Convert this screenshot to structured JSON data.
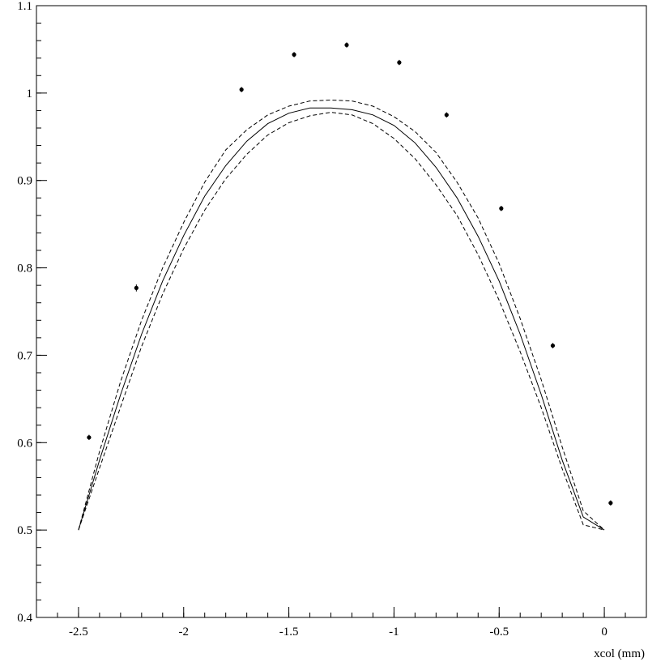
{
  "chart_data": {
    "type": "line",
    "title": "",
    "xlabel": "xcol (mm)",
    "ylabel": "",
    "xlim": [
      -2.7,
      0.2
    ],
    "ylim": [
      0.4,
      1.1
    ],
    "grid": false,
    "legend": "none",
    "x_ticks": [
      -2.5,
      -2,
      -1.5,
      -1,
      -0.5,
      0
    ],
    "x_tick_labels": [
      "-2.5",
      "-2",
      "-1.5",
      "-1",
      "-0.5",
      "0"
    ],
    "y_ticks": [
      0.4,
      0.5,
      0.6,
      0.7,
      0.8,
      0.9,
      1,
      1.1
    ],
    "y_tick_labels": [
      "0.4",
      "0.5",
      "0.6",
      "0.7",
      "0.8",
      "0.9",
      "1",
      "1.1"
    ],
    "series": [
      {
        "style": "points",
        "x": [
          -2.45,
          -2.225,
          -1.725,
          -1.475,
          -1.225,
          -0.975,
          -0.75,
          -0.49,
          -0.245,
          0.03
        ],
        "y": [
          0.606,
          0.777,
          1.004,
          1.044,
          1.055,
          1.035,
          0.975,
          0.868,
          0.711,
          0.531
        ],
        "err": [
          0.003,
          0.004,
          0.003,
          0.003,
          0.003,
          0.003,
          0.003,
          0.003,
          0.003,
          0.003
        ]
      },
      {
        "style": "solid",
        "x": [
          -2.5,
          -2.4,
          -2.3,
          -2.2,
          -2.1,
          -2.0,
          -1.9,
          -1.8,
          -1.7,
          -1.6,
          -1.5,
          -1.4,
          -1.3,
          -1.2,
          -1.1,
          -1.0,
          -0.9,
          -0.8,
          -0.7,
          -0.6,
          -0.5,
          -0.4,
          -0.3,
          -0.2,
          -0.1,
          0.0
        ],
        "y": [
          0.5,
          0.58,
          0.655,
          0.724,
          0.785,
          0.837,
          0.882,
          0.917,
          0.945,
          0.965,
          0.977,
          0.983,
          0.983,
          0.981,
          0.975,
          0.963,
          0.943,
          0.915,
          0.88,
          0.836,
          0.785,
          0.724,
          0.655,
          0.58,
          0.515,
          0.5
        ]
      },
      {
        "style": "dashed",
        "x": [
          -2.5,
          -2.4,
          -2.3,
          -2.2,
          -2.1,
          -2.0,
          -1.9,
          -1.8,
          -1.7,
          -1.6,
          -1.5,
          -1.4,
          -1.3,
          -1.2,
          -1.1,
          -1.0,
          -0.9,
          -0.8,
          -0.7,
          -0.6,
          -0.5,
          -0.4,
          -0.3,
          -0.2,
          -0.1,
          0.0
        ],
        "y": [
          0.5,
          0.59,
          0.67,
          0.74,
          0.8,
          0.852,
          0.898,
          0.935,
          0.958,
          0.975,
          0.985,
          0.991,
          0.992,
          0.991,
          0.985,
          0.973,
          0.956,
          0.932,
          0.898,
          0.857,
          0.805,
          0.742,
          0.672,
          0.595,
          0.522,
          0.5
        ]
      },
      {
        "style": "dashed",
        "x": [
          -2.5,
          -2.4,
          -2.3,
          -2.2,
          -2.1,
          -2.0,
          -1.9,
          -1.8,
          -1.7,
          -1.6,
          -1.5,
          -1.4,
          -1.3,
          -1.2,
          -1.1,
          -1.0,
          -0.9,
          -0.8,
          -0.7,
          -0.6,
          -0.5,
          -0.4,
          -0.3,
          -0.2,
          -0.1,
          0.0
        ],
        "y": [
          0.5,
          0.571,
          0.641,
          0.71,
          0.77,
          0.822,
          0.866,
          0.902,
          0.93,
          0.952,
          0.966,
          0.974,
          0.978,
          0.975,
          0.965,
          0.948,
          0.925,
          0.895,
          0.86,
          0.815,
          0.763,
          0.704,
          0.64,
          0.57,
          0.506,
          0.5
        ]
      }
    ]
  }
}
